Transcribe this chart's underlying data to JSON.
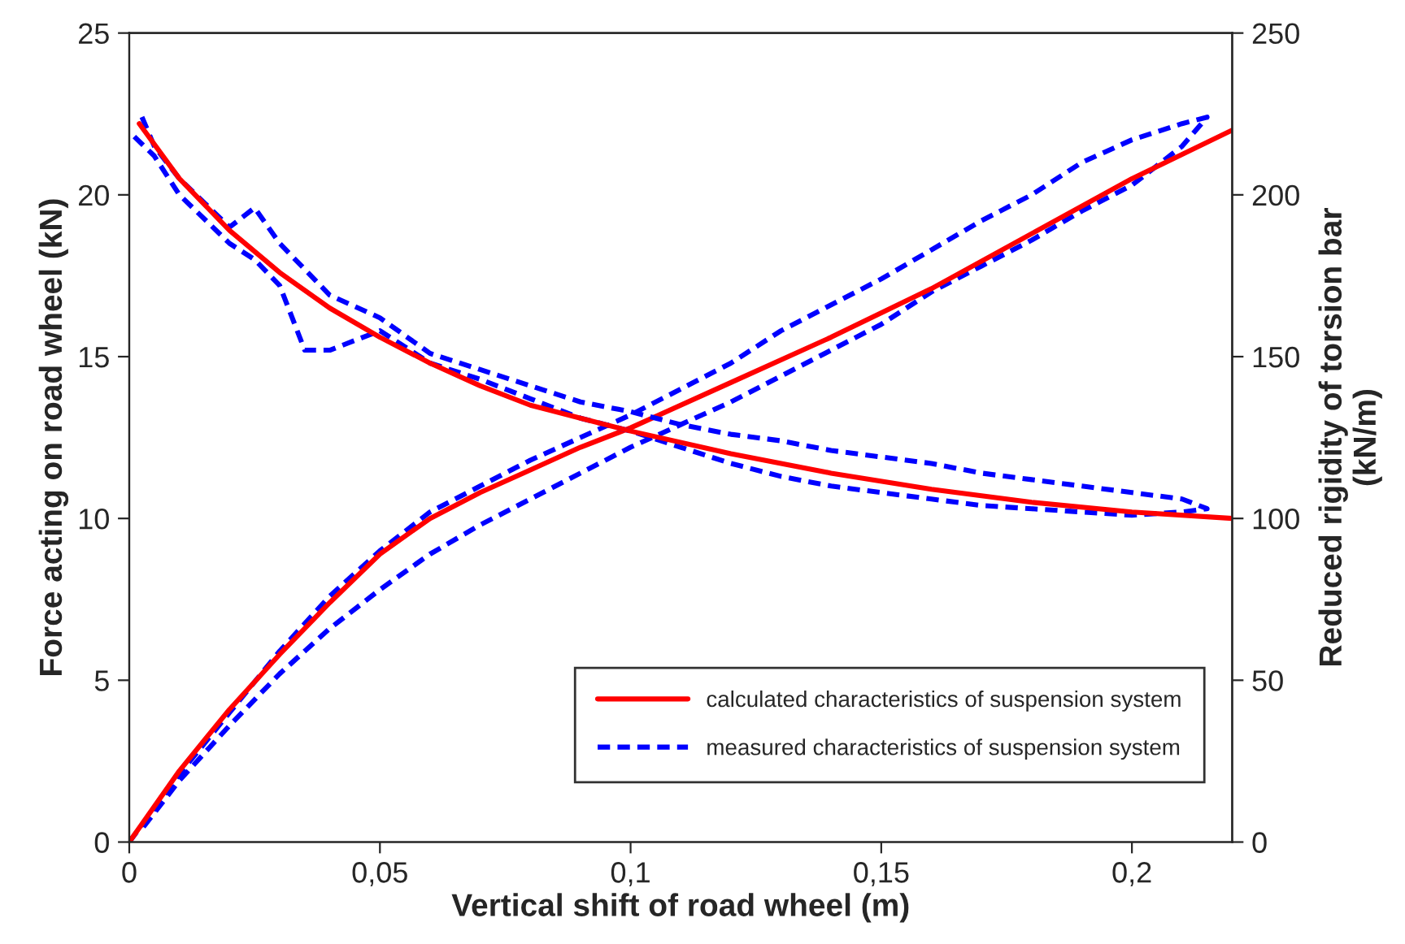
{
  "chart_data": {
    "type": "line",
    "xlabel": "Vertical shift of road wheel (m)",
    "ylabel": "Force acting on road wheel (kN)",
    "y2label": "Reduced rigidity of torsion bar\n(kN/m)",
    "xlim": [
      0,
      0.22
    ],
    "xticks": [
      0,
      {
        "value": 0.05,
        "label": "0,05"
      },
      {
        "value": 0.1,
        "label": "0,1"
      },
      {
        "value": 0.15,
        "label": "0,15"
      },
      {
        "value": 0.2,
        "label": "0,2"
      }
    ],
    "ylim": [
      0,
      25
    ],
    "yticks": [
      0,
      5,
      10,
      15,
      20,
      25
    ],
    "y2lim": [
      0,
      250
    ],
    "y2ticks": [
      0,
      50,
      100,
      150,
      200,
      250
    ],
    "grid": false,
    "legend": "bottom right",
    "series": [
      {
        "name": "measured characteristics of suspension system",
        "color": "#0000ff",
        "line_style": "dashed",
        "x": [
          0,
          0.01,
          0.02,
          0.03,
          0.04,
          0.05,
          0.06,
          0.07,
          0.08,
          0.09,
          0.1,
          0.11,
          0.12,
          0.13,
          0.14,
          0.15,
          0.16,
          0.17,
          0.18,
          0.19,
          0.2,
          0.21,
          0.215,
          0.21,
          0.2,
          0.19,
          0.18,
          0.17,
          0.16,
          0.15,
          0.14,
          0.13,
          0.12,
          0.11,
          0.1,
          0.09,
          0.08,
          0.07,
          0.06,
          0.05,
          0.04,
          0.03,
          0.02,
          0.01,
          0.002
        ],
        "values": [
          0,
          2.1,
          4.0,
          5.9,
          7.6,
          9.0,
          10.2,
          11.0,
          11.8,
          12.5,
          13.2,
          14.0,
          14.8,
          15.8,
          16.6,
          17.4,
          18.3,
          19.2,
          20.0,
          21.0,
          21.7,
          22.2,
          22.4,
          21.5,
          20.3,
          19.5,
          18.6,
          17.8,
          17.0,
          16.0,
          15.2,
          14.4,
          13.6,
          12.9,
          12.2,
          11.4,
          10.6,
          9.8,
          8.9,
          7.8,
          6.6,
          5.2,
          3.6,
          1.9,
          0.3
        ]
      },
      {
        "color": "#0000ff",
        "line_style": "dashed",
        "axis": "y2",
        "x": [
          0.001,
          0.005,
          0.01,
          0.02,
          0.025,
          0.03,
          0.035,
          0.04,
          0.05,
          0.06,
          0.07,
          0.08,
          0.09,
          0.1,
          0.11,
          0.12,
          0.13,
          0.14,
          0.15,
          0.16,
          0.17,
          0.18,
          0.19,
          0.2,
          0.21,
          0.215,
          0.21,
          0.2,
          0.19,
          0.18,
          0.17,
          0.16,
          0.15,
          0.14,
          0.13,
          0.12,
          0.11,
          0.1,
          0.09,
          0.08,
          0.07,
          0.06,
          0.05,
          0.04,
          0.03,
          0.025,
          0.02,
          0.01,
          0.005,
          0.002
        ],
        "values": [
          218,
          212,
          200,
          185,
          180,
          172,
          152,
          152,
          158,
          148,
          143,
          137,
          131,
          127,
          122,
          117,
          113,
          110,
          108,
          106,
          104,
          103,
          102,
          101,
          102,
          103,
          106,
          108,
          110,
          112,
          114,
          117,
          119,
          121,
          124,
          126,
          129,
          133,
          136,
          141,
          146,
          151,
          162,
          169,
          185,
          196,
          190,
          205,
          215,
          226
        ]
      },
      {
        "name": "calculated characteristics of suspension system",
        "color": "#ff0000",
        "line_style": "solid",
        "x": [
          0,
          0.01,
          0.02,
          0.03,
          0.04,
          0.05,
          0.06,
          0.07,
          0.08,
          0.09,
          0.1,
          0.12,
          0.14,
          0.16,
          0.18,
          0.2,
          0.22
        ],
        "values": [
          0,
          2.2,
          4.1,
          5.8,
          7.4,
          8.9,
          10.0,
          10.8,
          11.5,
          12.2,
          12.8,
          14.2,
          15.6,
          17.1,
          18.8,
          20.5,
          22.0
        ]
      },
      {
        "color": "#ff0000",
        "line_style": "solid",
        "axis": "y2",
        "x": [
          0.002,
          0.01,
          0.02,
          0.03,
          0.04,
          0.05,
          0.06,
          0.07,
          0.08,
          0.09,
          0.1,
          0.12,
          0.14,
          0.16,
          0.18,
          0.2,
          0.22
        ],
        "values": [
          222,
          205,
          189,
          176,
          165,
          156,
          148,
          141,
          135,
          131,
          127,
          120,
          114,
          109,
          105,
          102,
          100
        ]
      }
    ]
  }
}
